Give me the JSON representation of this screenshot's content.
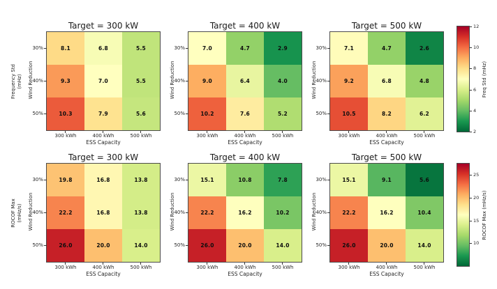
{
  "colormap": {
    "name": "RdYlGn_r",
    "anchors": [
      "#a50026",
      "#d73027",
      "#f46d43",
      "#fdae61",
      "#fee08b",
      "#ffffbf",
      "#d9ef8b",
      "#a6d96a",
      "#66bd63",
      "#1a9850",
      "#006837"
    ]
  },
  "chart_data": {
    "type": "heatmap",
    "grid": "2 rows x 3 cols",
    "background": "#ffffff",
    "shared": {
      "xlabel": "ESS Capacity",
      "ylabel": "Wind Reduction",
      "x_ticks": [
        "300 kWh",
        "400 kWh",
        "500 kWh"
      ],
      "y_ticks": [
        "30%",
        "40%",
        "50%"
      ]
    },
    "panels": [
      {
        "row": 0,
        "col": 0,
        "title": "Target = 300 kW",
        "metric_label_lines": [
          "Frequency Std",
          "(mHz)"
        ],
        "vmin": 2,
        "vmax": 12,
        "values": [
          [
            8.1,
            6.8,
            5.5
          ],
          [
            9.3,
            7.0,
            5.5
          ],
          [
            10.3,
            7.9,
            5.6
          ]
        ]
      },
      {
        "row": 0,
        "col": 1,
        "title": "Target = 400 kW",
        "vmin": 2,
        "vmax": 12,
        "values": [
          [
            7.0,
            4.7,
            2.9
          ],
          [
            9.0,
            6.4,
            4.0
          ],
          [
            10.2,
            7.6,
            5.2
          ]
        ]
      },
      {
        "row": 0,
        "col": 2,
        "title": "Target = 500 kW",
        "vmin": 2,
        "vmax": 12,
        "values": [
          [
            7.1,
            4.7,
            2.6
          ],
          [
            9.2,
            6.8,
            4.8
          ],
          [
            10.5,
            8.2,
            6.2
          ]
        ]
      },
      {
        "row": 1,
        "col": 0,
        "title": "Target = 300 kW",
        "metric_label_lines": [
          "ROCOF Max",
          "(mHz/s)"
        ],
        "vmin": 5,
        "vmax": 27.5,
        "values": [
          [
            19.8,
            16.8,
            13.8
          ],
          [
            22.2,
            16.8,
            13.8
          ],
          [
            26.0,
            20.0,
            14.0
          ]
        ]
      },
      {
        "row": 1,
        "col": 1,
        "title": "Target = 400 kW",
        "vmin": 5,
        "vmax": 27.5,
        "values": [
          [
            15.1,
            10.8,
            7.8
          ],
          [
            22.2,
            16.2,
            10.2
          ],
          [
            26.0,
            20.0,
            14.0
          ]
        ]
      },
      {
        "row": 1,
        "col": 2,
        "title": "Target = 500 kW",
        "vmin": 5,
        "vmax": 27.5,
        "values": [
          [
            15.1,
            9.1,
            5.6
          ],
          [
            22.2,
            16.2,
            10.4
          ],
          [
            26.0,
            20.0,
            14.0
          ]
        ]
      }
    ],
    "colorbars": [
      {
        "row": 0,
        "label": "Freq Std (mHz)",
        "vmin": 2,
        "vmax": 12,
        "ticks": [
          12,
          10,
          8,
          6,
          4,
          2
        ]
      },
      {
        "row": 1,
        "label": "ROCOF Max (mHz/s)",
        "vmin": 5,
        "vmax": 27.5,
        "ticks": [
          25,
          20,
          15,
          10
        ]
      }
    ]
  }
}
